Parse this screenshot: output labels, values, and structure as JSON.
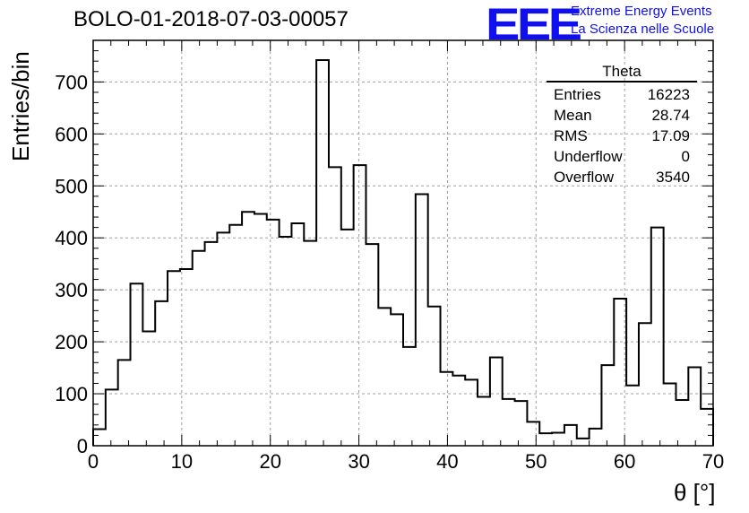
{
  "header": {
    "title": "BOLO-01-2018-07-03-00057",
    "logo_mark": "EEE",
    "logo_line1": "Extreme Energy Events",
    "logo_line2": "La Scienza nelle Scuole",
    "logo_color": "#1010ee"
  },
  "stats": {
    "title": "Theta",
    "rows": [
      {
        "label": "Entries",
        "value": "16223"
      },
      {
        "label": "Mean",
        "value": "28.74"
      },
      {
        "label": "RMS",
        "value": "17.09"
      },
      {
        "label": "Underflow",
        "value": "0"
      },
      {
        "label": "Overflow",
        "value": "3540"
      }
    ]
  },
  "chart_data": {
    "type": "bar",
    "histogram": true,
    "title": "BOLO-01-2018-07-03-00057",
    "xlabel": "θ [°]",
    "ylabel": "Entries/bin",
    "xlim": [
      0,
      70
    ],
    "ylim": [
      0,
      780
    ],
    "bin_width": 1.4,
    "xticks": [
      0,
      10,
      20,
      30,
      40,
      50,
      60,
      70
    ],
    "yticks": [
      0,
      100,
      200,
      300,
      400,
      500,
      600,
      700
    ],
    "grid": true,
    "values": [
      32,
      108,
      165,
      312,
      220,
      278,
      336,
      340,
      375,
      392,
      410,
      425,
      450,
      446,
      435,
      402,
      428,
      394,
      742,
      536,
      416,
      540,
      388,
      265,
      253,
      190,
      484,
      268,
      142,
      135,
      127,
      94,
      170,
      90,
      86,
      46,
      24,
      25,
      40,
      14,
      33,
      155,
      283,
      116,
      236,
      420,
      120,
      88,
      151,
      71
    ]
  }
}
